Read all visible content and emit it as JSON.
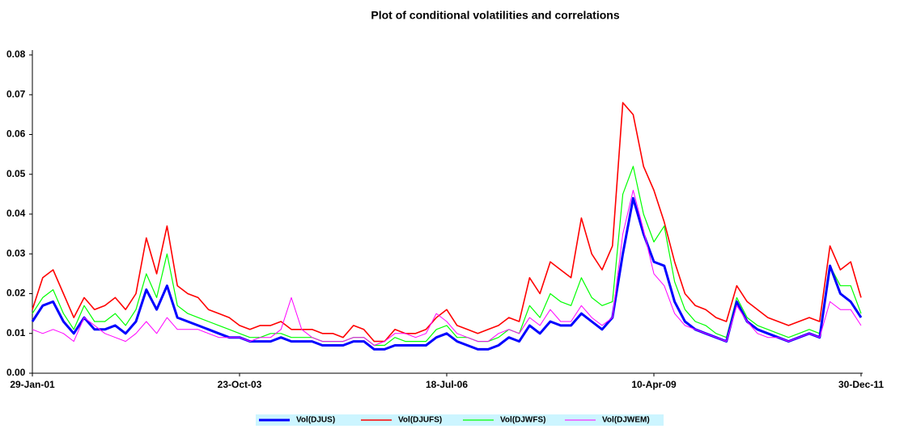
{
  "chart_data": {
    "type": "line",
    "title": "Plot of conditional volatilities and correlations",
    "categories": [
      "29-Jan-01",
      null,
      null,
      null,
      null,
      null,
      null,
      null,
      null,
      null,
      null,
      null,
      null,
      null,
      null,
      null,
      null,
      null,
      null,
      null,
      "23-Oct-03",
      null,
      null,
      null,
      null,
      null,
      null,
      null,
      null,
      null,
      null,
      null,
      null,
      null,
      null,
      null,
      null,
      null,
      null,
      null,
      "18-Jul-06",
      null,
      null,
      null,
      null,
      null,
      null,
      null,
      null,
      null,
      null,
      null,
      null,
      null,
      null,
      null,
      null,
      null,
      null,
      null,
      "10-Apr-09",
      null,
      null,
      null,
      null,
      null,
      null,
      null,
      null,
      null,
      null,
      null,
      null,
      null,
      null,
      null,
      null,
      null,
      null,
      null,
      "30-Dec-11"
    ],
    "series": [
      {
        "name": "Vol(DJUS)",
        "color": "#0000ff",
        "values": [
          0.013,
          0.017,
          0.018,
          0.013,
          0.01,
          0.014,
          0.011,
          0.011,
          0.012,
          0.01,
          0.013,
          0.021,
          0.016,
          0.022,
          0.014,
          0.013,
          0.012,
          0.011,
          0.01,
          0.009,
          0.009,
          0.008,
          0.008,
          0.008,
          0.009,
          0.008,
          0.008,
          0.008,
          0.007,
          0.007,
          0.007,
          0.008,
          0.008,
          0.006,
          0.006,
          0.007,
          0.007,
          0.007,
          0.007,
          0.009,
          0.01,
          0.008,
          0.007,
          0.006,
          0.006,
          0.007,
          0.009,
          0.008,
          0.012,
          0.01,
          0.013,
          0.012,
          0.012,
          0.015,
          0.013,
          0.011,
          0.014,
          0.03,
          0.044,
          0.035,
          0.028,
          0.027,
          0.018,
          0.013,
          0.011,
          0.01,
          0.009,
          0.008,
          0.018,
          0.013,
          0.011,
          0.01,
          0.009,
          0.008,
          0.009,
          0.01,
          0.009,
          0.027,
          0.02,
          0.018,
          0.014
        ]
      },
      {
        "name": "Vol(DJUFS)",
        "color": "#ff0000",
        "values": [
          0.016,
          0.024,
          0.026,
          0.02,
          0.014,
          0.019,
          0.016,
          0.017,
          0.019,
          0.016,
          0.02,
          0.034,
          0.025,
          0.037,
          0.022,
          0.02,
          0.019,
          0.016,
          0.015,
          0.014,
          0.012,
          0.011,
          0.012,
          0.012,
          0.013,
          0.011,
          0.011,
          0.011,
          0.01,
          0.01,
          0.009,
          0.012,
          0.011,
          0.008,
          0.008,
          0.011,
          0.01,
          0.01,
          0.011,
          0.014,
          0.016,
          0.012,
          0.011,
          0.01,
          0.011,
          0.012,
          0.014,
          0.013,
          0.024,
          0.02,
          0.028,
          0.026,
          0.024,
          0.039,
          0.03,
          0.026,
          0.032,
          0.068,
          0.065,
          0.052,
          0.046,
          0.038,
          0.028,
          0.02,
          0.017,
          0.016,
          0.014,
          0.013,
          0.022,
          0.018,
          0.016,
          0.014,
          0.013,
          0.012,
          0.013,
          0.014,
          0.013,
          0.032,
          0.026,
          0.028,
          0.019
        ]
      },
      {
        "name": "Vol(DJWFS)",
        "color": "#00ff00",
        "values": [
          0.015,
          0.019,
          0.021,
          0.015,
          0.011,
          0.017,
          0.013,
          0.013,
          0.015,
          0.012,
          0.016,
          0.025,
          0.019,
          0.03,
          0.017,
          0.015,
          0.014,
          0.013,
          0.012,
          0.011,
          0.01,
          0.009,
          0.009,
          0.01,
          0.01,
          0.009,
          0.009,
          0.009,
          0.008,
          0.008,
          0.008,
          0.009,
          0.009,
          0.007,
          0.007,
          0.009,
          0.008,
          0.008,
          0.008,
          0.011,
          0.012,
          0.009,
          0.009,
          0.008,
          0.008,
          0.009,
          0.011,
          0.01,
          0.017,
          0.014,
          0.02,
          0.018,
          0.017,
          0.024,
          0.019,
          0.017,
          0.018,
          0.045,
          0.052,
          0.04,
          0.033,
          0.037,
          0.023,
          0.016,
          0.013,
          0.012,
          0.01,
          0.009,
          0.019,
          0.014,
          0.012,
          0.011,
          0.01,
          0.009,
          0.01,
          0.011,
          0.01,
          0.027,
          0.022,
          0.022,
          0.015
        ]
      },
      {
        "name": "Vol(DJWEM)",
        "color": "#ff00ff",
        "values": [
          0.011,
          0.01,
          0.011,
          0.01,
          0.008,
          0.014,
          0.012,
          0.01,
          0.009,
          0.008,
          0.01,
          0.013,
          0.01,
          0.014,
          0.011,
          0.011,
          0.011,
          0.01,
          0.009,
          0.009,
          0.009,
          0.008,
          0.009,
          0.009,
          0.011,
          0.019,
          0.011,
          0.009,
          0.008,
          0.008,
          0.008,
          0.009,
          0.009,
          0.007,
          0.008,
          0.01,
          0.01,
          0.009,
          0.01,
          0.015,
          0.013,
          0.01,
          0.009,
          0.008,
          0.008,
          0.01,
          0.011,
          0.01,
          0.014,
          0.012,
          0.016,
          0.013,
          0.013,
          0.017,
          0.014,
          0.012,
          0.014,
          0.035,
          0.046,
          0.036,
          0.025,
          0.022,
          0.015,
          0.012,
          0.011,
          0.01,
          0.009,
          0.008,
          0.017,
          0.013,
          0.01,
          0.009,
          0.009,
          0.008,
          0.009,
          0.01,
          0.009,
          0.018,
          0.016,
          0.016,
          0.012
        ]
      }
    ],
    "ylim": [
      0,
      0.08
    ],
    "yticks": [
      {
        "value": 0,
        "label": "0.00"
      },
      0.01,
      0.02,
      0.03,
      0.04,
      0.05,
      0.06,
      0.07,
      0.08
    ],
    "grid": false,
    "legend": "bottom"
  }
}
